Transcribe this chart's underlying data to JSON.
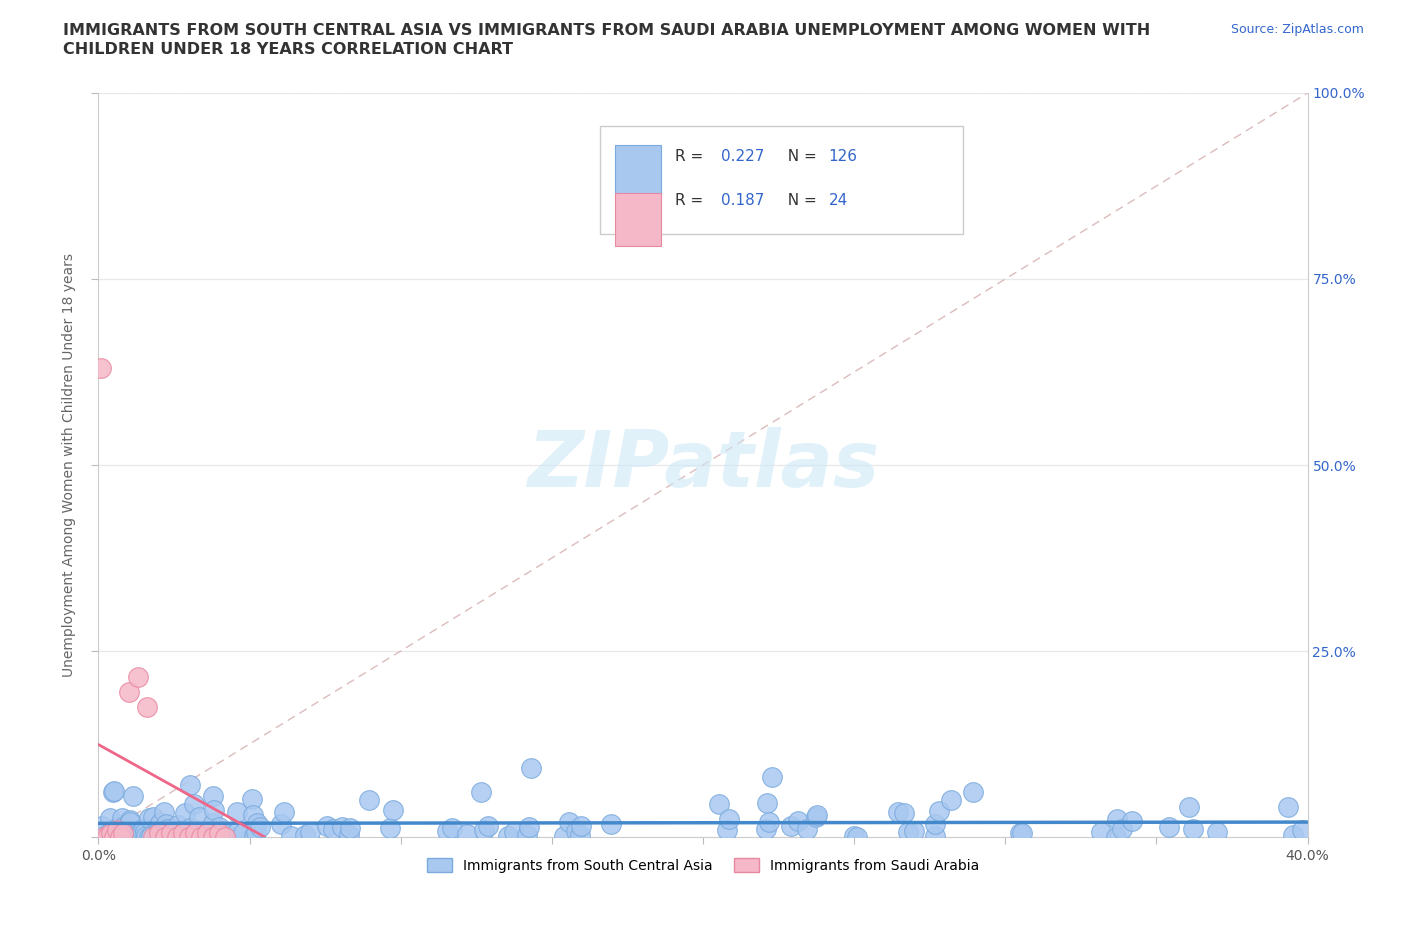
{
  "title_line1": "IMMIGRANTS FROM SOUTH CENTRAL ASIA VS IMMIGRANTS FROM SAUDI ARABIA UNEMPLOYMENT AMONG WOMEN WITH",
  "title_line2": "CHILDREN UNDER 18 YEARS CORRELATION CHART",
  "source_text": "Source: ZipAtlas.com",
  "ylabel": "Unemployment Among Women with Children Under 18 years",
  "xlim": [
    0.0,
    0.4
  ],
  "ylim": [
    0.0,
    1.0
  ],
  "series1_color": "#a8c8f0",
  "series1_edge": "#7aaadd",
  "series2_color": "#f5b8c8",
  "series2_edge": "#e888a0",
  "trend1_color": "#4488cc",
  "trend2_color": "#ee6688",
  "ref_line_color": "#ddbbbb",
  "series1_label": "Immigrants from South Central Asia",
  "series2_label": "Immigrants from Saudi Arabia",
  "legend_R1": "0.227",
  "legend_N1": "126",
  "legend_R2": "0.187",
  "legend_N2": "24",
  "watermark": "ZIPatlas",
  "background_color": "#ffffff",
  "grid_color": "#e8e8e8",
  "title_color": "#333333",
  "legend_text_color": "#333333",
  "legend_val_color": "#3366cc",
  "right_axis_color": "#3366cc",
  "source_color": "#3366cc"
}
